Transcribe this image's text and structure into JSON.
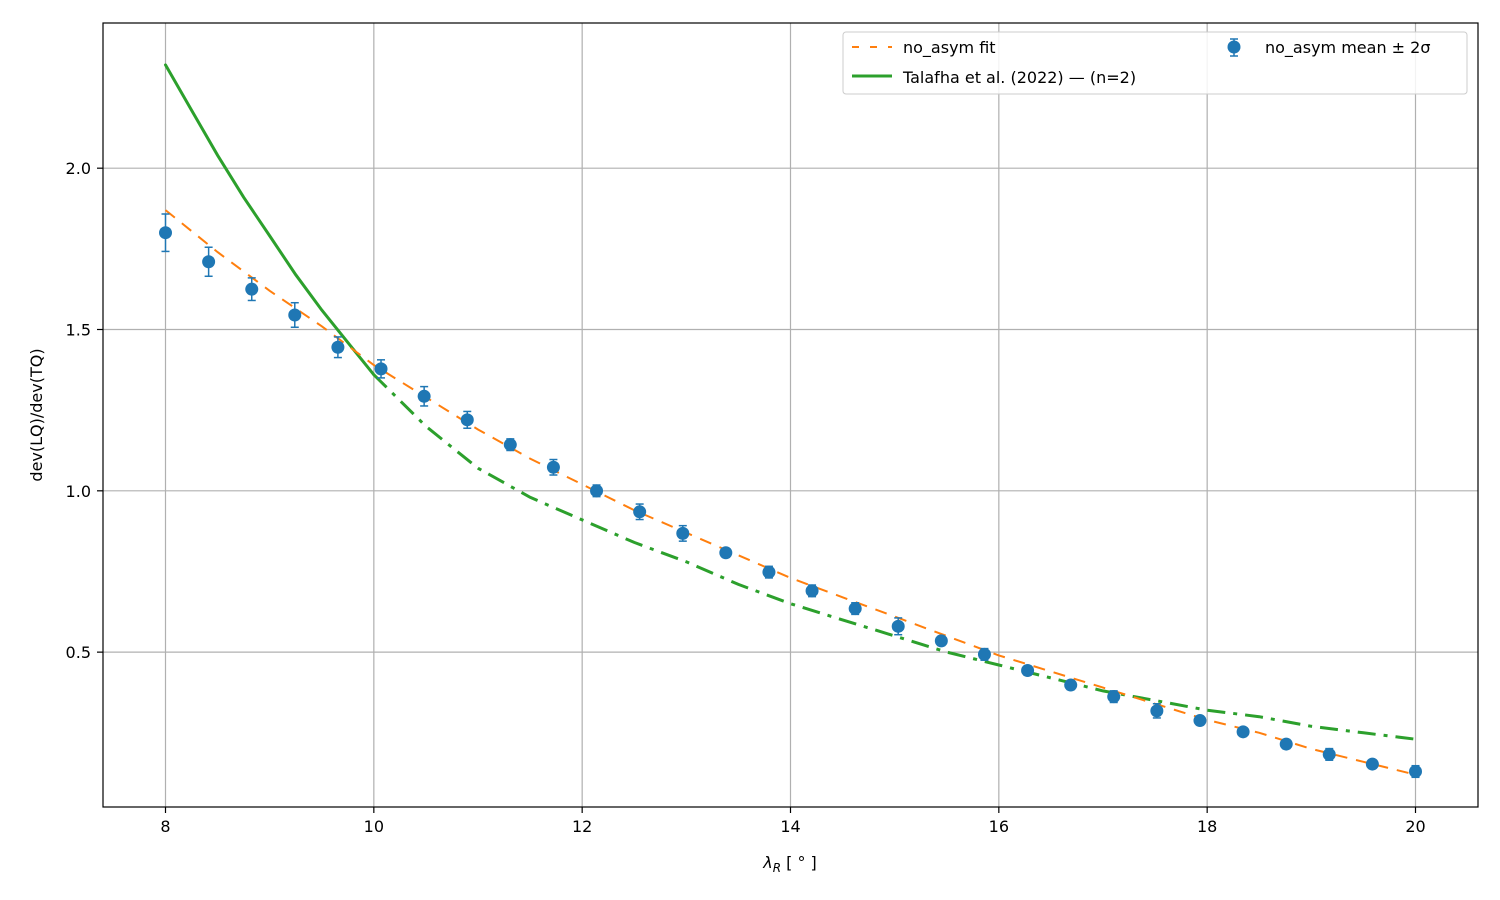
{
  "chart_data": {
    "type": "line",
    "xlabel_main": "λ",
    "xlabel_sub": "R",
    "xlabel_rest": " [ ° ]",
    "ylabel": "dev(LQ)/dev(TQ)",
    "xlim": [
      7.4,
      20.6
    ],
    "ylim": [
      0.02,
      2.45
    ],
    "xticks": [
      8,
      10,
      12,
      14,
      16,
      18,
      20
    ],
    "yticks": [
      0.5,
      1.0,
      1.5,
      2.0
    ],
    "xtick_labels": [
      "8",
      "10",
      "12",
      "14",
      "16",
      "18",
      "20"
    ],
    "ytick_labels": [
      "0.5",
      "1.0",
      "1.5",
      "2.0"
    ],
    "grid": true,
    "legend_position": "top-right",
    "colors": {
      "points": "#1f77b4",
      "fit": "#ff7f0e",
      "talafha": "#2ca02c",
      "grid": "#b0b0b0"
    },
    "series": [
      {
        "name": "no_asym fit",
        "kind": "line",
        "style": "dashed",
        "x": [
          8.0,
          8.5,
          9.0,
          9.5,
          10.0,
          10.5,
          11.0,
          11.5,
          12.0,
          12.5,
          13.0,
          13.5,
          14.0,
          14.5,
          15.0,
          15.5,
          16.0,
          16.5,
          17.0,
          17.5,
          18.0,
          18.5,
          19.0,
          19.5,
          20.0
        ],
        "y": [
          1.87,
          1.74,
          1.62,
          1.51,
          1.39,
          1.29,
          1.19,
          1.1,
          1.02,
          0.94,
          0.87,
          0.8,
          0.73,
          0.67,
          0.61,
          0.55,
          0.49,
          0.44,
          0.39,
          0.34,
          0.29,
          0.25,
          0.2,
          0.16,
          0.12
        ]
      },
      {
        "name": "Talafha et al. (2022) — (n=2)",
        "kind": "line",
        "style": "solid-then-dashdot",
        "x": [
          8.0,
          8.25,
          8.5,
          8.75,
          9.0,
          9.25,
          9.5,
          9.75,
          10.0,
          10.5,
          11.0,
          11.5,
          12.0,
          12.5,
          13.0,
          13.5,
          14.0,
          14.5,
          15.0,
          15.5,
          16.0,
          16.5,
          17.0,
          17.5,
          18.0,
          18.5,
          19.0,
          19.5,
          20.0
        ],
        "y": [
          2.32,
          2.18,
          2.04,
          1.91,
          1.79,
          1.67,
          1.56,
          1.46,
          1.36,
          1.2,
          1.07,
          0.98,
          0.91,
          0.84,
          0.78,
          0.71,
          0.65,
          0.6,
          0.55,
          0.5,
          0.46,
          0.42,
          0.38,
          0.35,
          0.32,
          0.3,
          0.27,
          0.25,
          0.23
        ]
      },
      {
        "name": "no_asym mean ± 2σ",
        "kind": "errorbar",
        "x": [
          8.0,
          8.414,
          8.828,
          9.241,
          9.655,
          10.069,
          10.483,
          10.897,
          11.31,
          11.724,
          12.138,
          12.552,
          12.966,
          13.379,
          13.793,
          14.207,
          14.621,
          15.034,
          15.448,
          15.862,
          16.276,
          16.69,
          17.103,
          17.517,
          17.931,
          18.345,
          18.759,
          19.172,
          19.586,
          20.0
        ],
        "y": [
          1.8,
          1.71,
          1.625,
          1.545,
          1.445,
          1.378,
          1.293,
          1.22,
          1.143,
          1.073,
          1.0,
          0.935,
          0.868,
          0.808,
          0.748,
          0.69,
          0.635,
          0.58,
          0.535,
          0.493,
          0.443,
          0.398,
          0.362,
          0.318,
          0.288,
          0.253,
          0.215,
          0.183,
          0.153,
          0.13
        ],
        "err": [
          0.058,
          0.045,
          0.035,
          0.038,
          0.032,
          0.028,
          0.03,
          0.026,
          0.018,
          0.024,
          0.018,
          0.024,
          0.024,
          0.014,
          0.018,
          0.018,
          0.018,
          0.026,
          0.014,
          0.018,
          0.014,
          0.014,
          0.018,
          0.022,
          0.012,
          0.012,
          0.014,
          0.018,
          0.012,
          0.018
        ]
      }
    ]
  }
}
